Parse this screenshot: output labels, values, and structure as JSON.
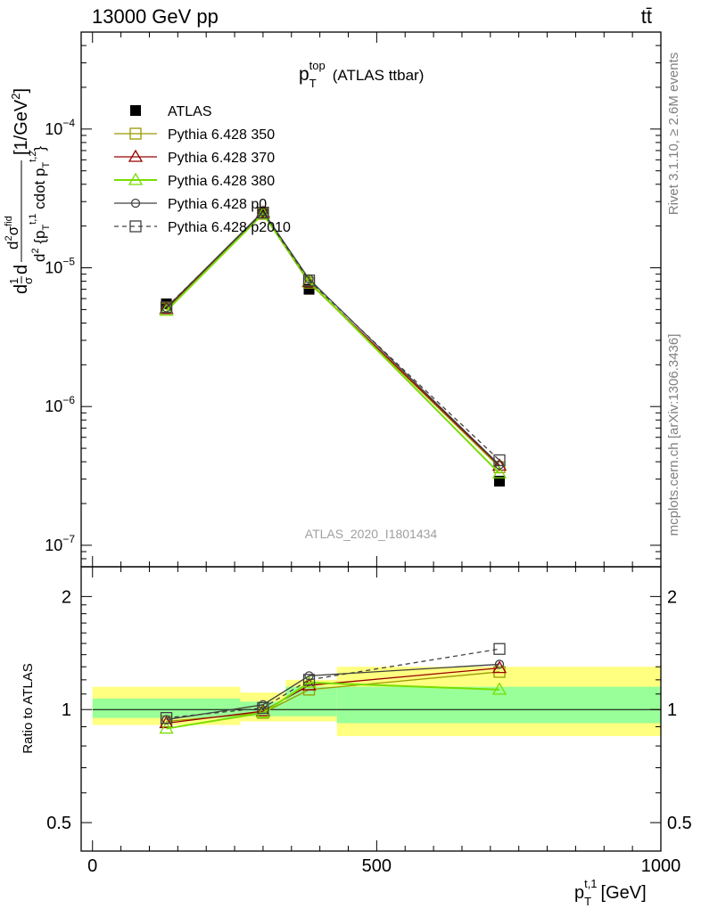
{
  "header": {
    "energy_label": "13000 GeV pp",
    "process_label": "tt̄"
  },
  "side_labels": {
    "rivet": "Rivet 3.1.10, ≥ 2.6M events",
    "mcplots": "mcplots.cern.ch [arXiv:1306.3436]"
  },
  "chart_data": [
    {
      "type": "line",
      "title": "p_T^top (ATLAS ttbar)",
      "title_main": "p",
      "title_sub": "T",
      "title_sup": "top",
      "title_rest": "(ATLAS ttbar)",
      "analysis_label": "ATLAS_2020_I1801434",
      "ylabel": "d²σ/dp_T^{t,1} d p_T^{t,2} [1/GeV²]",
      "yscale": "log",
      "ylim": [
        7e-08,
        0.0005
      ],
      "xlim": [
        -20,
        1000
      ],
      "yticks": [
        1e-07,
        1e-06,
        1e-05,
        0.0001
      ],
      "ytick_labels": [
        {
          "base": "10",
          "exp": "−7"
        },
        {
          "base": "10",
          "exp": "−6"
        },
        {
          "base": "10",
          "exp": "−5"
        },
        {
          "base": "10",
          "exp": "−4"
        }
      ],
      "legend_position": "upper-left",
      "series": [
        {
          "name": "ATLAS",
          "color": "#000000",
          "marker": "filled-square",
          "x": [
            130,
            300,
            381,
            716
          ],
          "y": [
            5.5e-06,
            2.5e-05,
            7e-06,
            2.9e-07
          ]
        },
        {
          "name": "Pythia 6.428 350",
          "color": "#999900",
          "marker": "open-square",
          "x": [
            130,
            300,
            381,
            716
          ],
          "y": [
            5.1e-06,
            2.45e-05,
            7.8e-06,
            3.65e-07
          ]
        },
        {
          "name": "Pythia 6.428 370",
          "color": "#990000",
          "marker": "open-triangle",
          "x": [
            130,
            300,
            381,
            716
          ],
          "y": [
            5.05e-06,
            2.5e-05,
            7.9e-06,
            3.75e-07
          ]
        },
        {
          "name": "Pythia 6.428 380",
          "color": "#77dd00",
          "marker": "open-triangle",
          "x": [
            130,
            300,
            381,
            716
          ],
          "y": [
            4.9e-06,
            2.45e-05,
            8e-06,
            3.3e-07
          ]
        },
        {
          "name": "Pythia 6.428 p0",
          "color": "#404040",
          "marker": "open-circle",
          "x": [
            130,
            300,
            381,
            716
          ],
          "y": [
            5.15e-06,
            2.55e-05,
            8.3e-06,
            3.8e-07
          ]
        },
        {
          "name": "Pythia 6.428 p2010",
          "color": "#404040",
          "marker": "open-square",
          "dashed": true,
          "x": [
            130,
            300,
            381,
            716
          ],
          "y": [
            5.2e-06,
            2.5e-05,
            8.1e-06,
            4.1e-07
          ]
        }
      ]
    },
    {
      "type": "line",
      "ylabel": "Ratio to ATLAS",
      "xlabel": "p_T^{t,1} [GeV]",
      "xlabel_main": "p",
      "xlabel_sub": "T",
      "xlabel_sup": "t,1",
      "xlabel_rest": "[GeV]",
      "yscale": "log",
      "ylim": [
        0.42,
        2.4
      ],
      "xlim": [
        -20,
        1000
      ],
      "yticks": [
        0.5,
        1,
        2
      ],
      "ytick_labels": [
        "0.5",
        "1",
        "2"
      ],
      "xticks": [
        0,
        500,
        1000
      ],
      "xtick_labels": [
        "0",
        "500",
        "1000"
      ],
      "bands": [
        {
          "x0": 0,
          "x1": 260,
          "inner": [
            0.95,
            1.07
          ],
          "outer": [
            0.91,
            1.15
          ]
        },
        {
          "x0": 260,
          "x1": 340,
          "inner": [
            0.96,
            1.05
          ],
          "outer": [
            0.93,
            1.11
          ]
        },
        {
          "x0": 340,
          "x1": 430,
          "inner": [
            0.96,
            1.15
          ],
          "outer": [
            0.93,
            1.2
          ]
        },
        {
          "x0": 430,
          "x1": 1000,
          "inner": [
            0.92,
            1.15
          ],
          "outer": [
            0.85,
            1.3
          ]
        }
      ],
      "series": [
        {
          "name": "Pythia 6.428 350",
          "color": "#999900",
          "marker": "open-square",
          "x": [
            130,
            300,
            381,
            716
          ],
          "y": [
            0.93,
            0.98,
            1.13,
            1.26
          ]
        },
        {
          "name": "Pythia 6.428 370",
          "color": "#990000",
          "marker": "open-triangle",
          "x": [
            130,
            300,
            381,
            716
          ],
          "y": [
            0.92,
            0.99,
            1.16,
            1.29
          ]
        },
        {
          "name": "Pythia 6.428 380",
          "color": "#77dd00",
          "marker": "open-triangle",
          "x": [
            130,
            300,
            381,
            716
          ],
          "y": [
            0.89,
            0.98,
            1.18,
            1.13
          ]
        },
        {
          "name": "Pythia 6.428 p0",
          "color": "#404040",
          "marker": "open-circle",
          "x": [
            130,
            300,
            381,
            716
          ],
          "y": [
            0.94,
            1.03,
            1.23,
            1.32
          ]
        },
        {
          "name": "Pythia 6.428 p2010",
          "color": "#404040",
          "marker": "open-square",
          "dashed": true,
          "x": [
            130,
            300,
            381,
            716
          ],
          "y": [
            0.95,
            1.01,
            1.2,
            1.45
          ]
        }
      ]
    }
  ]
}
